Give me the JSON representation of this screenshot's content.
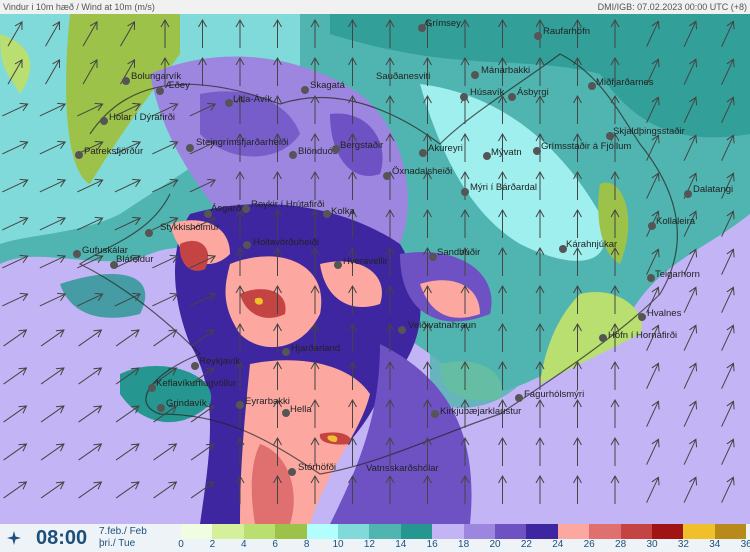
{
  "header": {
    "title": "Vindur i 10m hæð / Wind at 10m (m/s)",
    "source": "DMI/IGB: 07.02.2023 00:00 UTC (+8)"
  },
  "footer": {
    "time": "08:00",
    "date_line1": "7.feb./ Feb",
    "date_line2": "þri./ Tue",
    "logo_icon": "wind-compass-icon"
  },
  "legend": {
    "ticks": [
      "0",
      "2",
      "4",
      "6",
      "8",
      "10",
      "12",
      "14",
      "16",
      "18",
      "20",
      "22",
      "24",
      "26",
      "28",
      "30",
      "32",
      "34",
      "36"
    ],
    "colors": [
      "#f1fde0",
      "#d4f09a",
      "#b8df70",
      "#9cc24a",
      "#b2fefe",
      "#80dada",
      "#50b4b0",
      "#259690",
      "#c3b5f5",
      "#9c86e0",
      "#6e52c4",
      "#3e26a0",
      "#fca8a0",
      "#e07070",
      "#c44444",
      "#a01414",
      "#f0c02a",
      "#b88a1a",
      "#7c5a10"
    ]
  },
  "stations": [
    "Grímsey",
    "Raufarhöfn",
    "Sauðanesviti",
    "Mánárbakki",
    "Húsavík",
    "Ásbyrgi",
    "Miðfjarðarnes",
    "Skjaldþingsstaðir",
    "Akureyri",
    "Mývatn",
    "Grímsstaðir á Fjöllum",
    "Öxnadalsheiði",
    "Mýri í Bárðardal",
    "Dalatangi",
    "Kollaleira",
    "Kárahnjúkar",
    "Sandbúðir",
    "Teigarhorn",
    "Hvalnes",
    "Höfn í Hornafirði",
    "Veiðivatnahraun",
    "Fagurhólsmýri",
    "Kirkjubæjarklaustur",
    "Vatnsskarðshólar",
    "Stórhöfði",
    "Hella",
    "Eyrarbakki",
    "Hjarðarland",
    "Reykjavík",
    "Keflavíkurflugvöllur",
    "Grindavík",
    "Gufuskálar",
    "Bláfeldur",
    "Stykkishólmur",
    "Ásgarður",
    "Holtavörðuheiði",
    "Hveravellir",
    "Kolka",
    "Reykir í Hrútafirði",
    "Blönduós",
    "Bergstaðir",
    "Skagatá",
    "Litla-Ávík",
    "Steingrímsfjarðarheiði",
    "Bolungarvík",
    "Æðey",
    "Hólar í Dýrafirði",
    "Patreksfjörður"
  ]
}
